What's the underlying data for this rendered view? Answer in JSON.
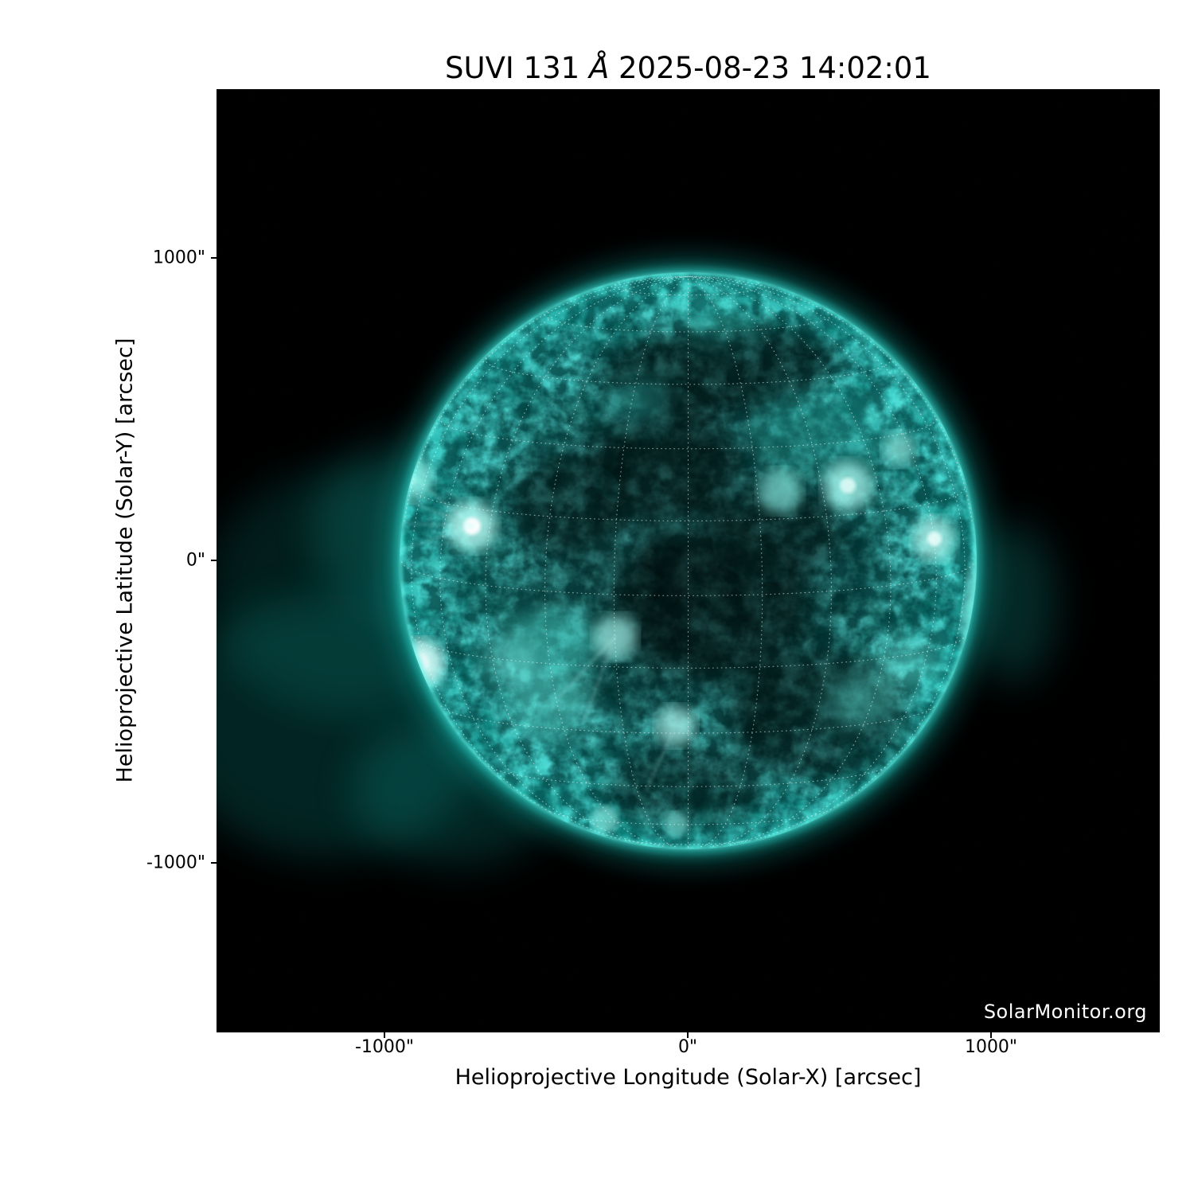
{
  "title": {
    "prefix": "SUVI 131 ",
    "angstrom": "Å",
    "suffix": " 2025-08-23 14:02:01"
  },
  "watermark": "SolarMonitor.org",
  "axes": {
    "x_label": "Helioprojective Longitude (Solar-X) [arcsec]",
    "y_label": "Helioprojective Latitude (Solar-Y) [arcsec]",
    "x_tick_labels": [
      "-1000\"",
      "0\"",
      "1000\""
    ],
    "y_tick_labels": [
      "1000\"",
      "0\"",
      "-1000\""
    ]
  },
  "colors": {
    "background": "#000000",
    "page": "#ffffff",
    "solar_teal_mid": "#0d8c86",
    "solar_bright": "#aefff5",
    "limb_ring": "#5df0e4",
    "grid_overlay": "#f0fcfa",
    "watermark_text": "#ffffff"
  },
  "chart_data": {
    "type": "heatmap",
    "title": "SUVI 131 Å 2025-08-23 14:02:01",
    "instrument": "SUVI",
    "wavelength_angstrom": 131,
    "timestamp_shown": "2025-08-23 14:02:01",
    "xlabel": "Helioprojective Longitude (Solar-X) [arcsec]",
    "ylabel": "Helioprojective Latitude (Solar-Y) [arcsec]",
    "xlim": [
      -1555,
      1555
    ],
    "ylim": [
      -1555,
      1555
    ],
    "x_ticks": [
      -1000,
      0,
      1000
    ],
    "y_ticks": [
      -1000,
      0,
      1000
    ],
    "grid": "dotted heliographic lat/lon overlay, 15 deg spacing, north pole near top limb",
    "solar_disk": {
      "center_arcsec": [
        0,
        0
      ],
      "radius_arcsec": 950
    },
    "features": [
      {
        "name": "bright active region at east limb (flaring, with ray fan)",
        "x_arcsec": -890,
        "y_arcsec": -335
      },
      {
        "name": "active region inside east limb",
        "x_arcsec": -710,
        "y_arcsec": 115
      },
      {
        "name": "limb brightening / active region NE limb",
        "x_arcsec": -940,
        "y_arcsec": 275
      },
      {
        "name": "active region cluster west of center",
        "x_arcsec": 545,
        "y_arcsec": 245
      },
      {
        "name": "active region near west limb",
        "x_arcsec": 810,
        "y_arcsec": 70
      },
      {
        "name": "bright arcade south of disk center",
        "x_arcsec": -40,
        "y_arcsec": -540
      },
      {
        "name": "bright loops south-west of center",
        "x_arcsec": -240,
        "y_arcsec": -245
      },
      {
        "name": "west limb brightening with off-limb glow",
        "x_arcsec": 980,
        "y_arcsec": -125
      },
      {
        "name": "dark coronal hole region north of center",
        "x_arcsec": 90,
        "y_arcsec": 630
      },
      {
        "name": "dark quiet region south-east of west-limb ARs",
        "x_arcsec": 440,
        "y_arcsec": -520
      }
    ],
    "legend": "none",
    "colormap": "teal/cyan (SUVI 131)"
  }
}
